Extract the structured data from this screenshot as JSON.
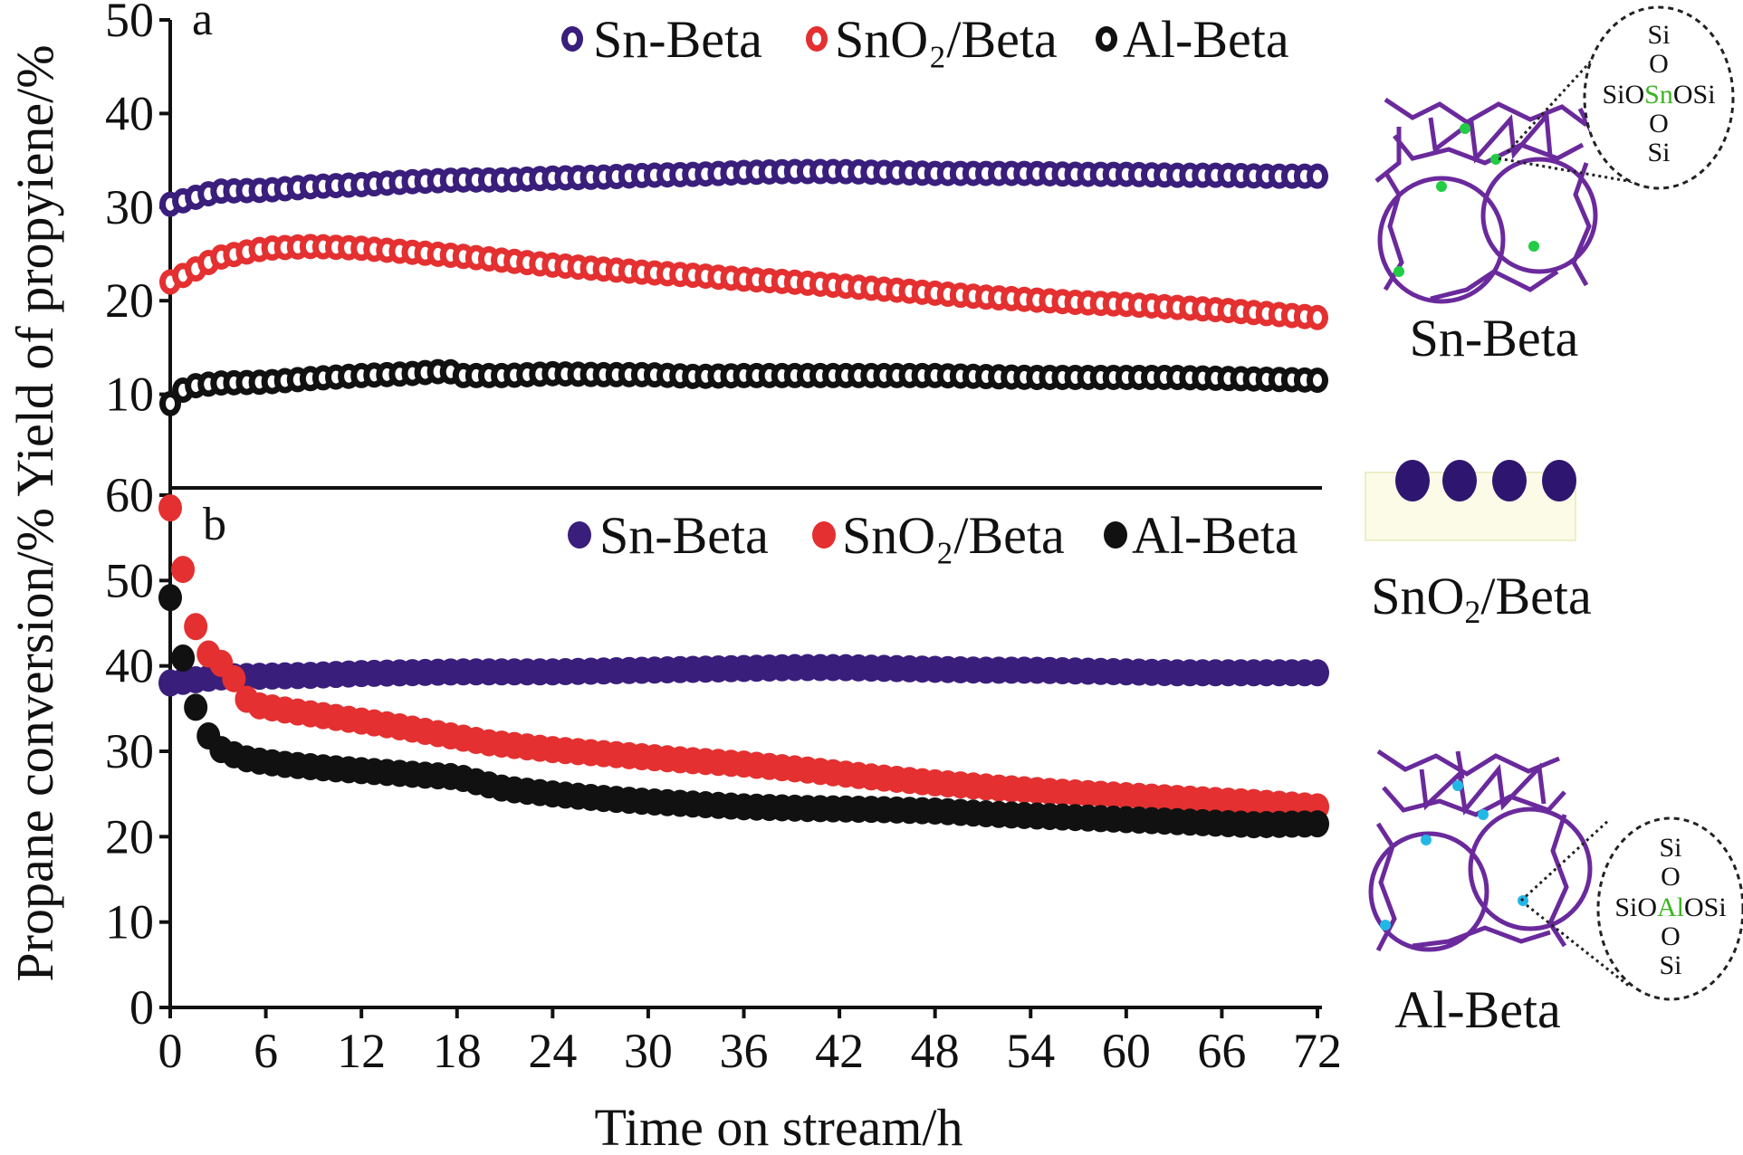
{
  "chart_data": [
    {
      "panel": "a",
      "type": "scatter",
      "ylim": [
        0,
        50
      ],
      "xlim": [
        0,
        72
      ],
      "yticks": [
        "10",
        "20",
        "30",
        "40",
        "50"
      ],
      "legend_position": "top-right",
      "series": [
        {
          "name": "Sn-Beta",
          "color": "#3a1e7c",
          "x": [
            0,
            3,
            6,
            9,
            12,
            15,
            18,
            21,
            24,
            27,
            30,
            33,
            36,
            39,
            42,
            45,
            48,
            51,
            54,
            57,
            60,
            63,
            66,
            69,
            72
          ],
          "y": [
            30.3,
            31.7,
            31.8,
            32.2,
            32.4,
            32.7,
            32.9,
            32.9,
            33.1,
            33.2,
            33.4,
            33.5,
            33.7,
            33.8,
            33.8,
            33.7,
            33.6,
            33.6,
            33.6,
            33.5,
            33.5,
            33.4,
            33.4,
            33.3,
            33.3
          ]
        },
        {
          "name": "SnO₂/Beta",
          "color": "#e43030",
          "x": [
            0,
            3,
            6,
            9,
            12,
            15,
            18,
            21,
            24,
            27,
            30,
            33,
            36,
            39,
            42,
            45,
            48,
            51,
            54,
            57,
            60,
            63,
            66,
            69,
            72
          ],
          "y": [
            22.0,
            24.6,
            25.6,
            25.8,
            25.6,
            25.2,
            24.8,
            24.3,
            23.8,
            23.4,
            23.0,
            22.7,
            22.3,
            22.0,
            21.6,
            21.2,
            20.8,
            20.4,
            20.1,
            19.8,
            19.6,
            19.3,
            19.0,
            18.6,
            18.2
          ]
        },
        {
          "name": "Al-Beta",
          "color": "#111111",
          "x": [
            0,
            1,
            3,
            6,
            9,
            12,
            15,
            17.5,
            18,
            21,
            24,
            27,
            30,
            33,
            36,
            39,
            42,
            45,
            48,
            51,
            54,
            57,
            60,
            63,
            66,
            69,
            72
          ],
          "y": [
            9.0,
            10.8,
            11.2,
            11.3,
            11.7,
            12.0,
            12.2,
            12.5,
            12.0,
            12.0,
            12.2,
            12.1,
            12.1,
            11.9,
            12.0,
            12.0,
            12.0,
            12.0,
            12.0,
            11.9,
            11.8,
            11.8,
            11.8,
            11.8,
            11.7,
            11.6,
            11.5
          ]
        }
      ]
    },
    {
      "panel": "b",
      "type": "scatter",
      "ylim": [
        0,
        60
      ],
      "xlim": [
        0,
        72
      ],
      "yticks": [
        "0",
        "10",
        "20",
        "30",
        "40",
        "50",
        "60"
      ],
      "xticks": [
        "0",
        "6",
        "12",
        "18",
        "24",
        "30",
        "36",
        "42",
        "48",
        "54",
        "60",
        "66",
        "72"
      ],
      "legend_position": "top-right",
      "series": [
        {
          "name": "Sn-Beta",
          "color": "#3a1e7c",
          "x": [
            0,
            3,
            6,
            9,
            12,
            15,
            18,
            21,
            24,
            27,
            30,
            33,
            36,
            39,
            42,
            45,
            48,
            51,
            54,
            57,
            60,
            63,
            66,
            69,
            72
          ],
          "y": [
            38.0,
            38.7,
            38.8,
            38.9,
            39.1,
            39.2,
            39.3,
            39.3,
            39.3,
            39.4,
            39.5,
            39.6,
            39.7,
            39.8,
            39.8,
            39.7,
            39.6,
            39.5,
            39.5,
            39.4,
            39.3,
            39.2,
            39.2,
            39.2,
            39.2
          ]
        },
        {
          "name": "SnO₂/Beta",
          "color": "#e43030",
          "x": [
            0,
            1.5,
            2.5,
            3.5,
            5,
            8,
            11,
            14,
            17,
            20,
            24,
            28,
            32,
            36,
            40,
            44,
            48,
            52,
            56,
            60,
            64,
            68,
            72
          ],
          "y": [
            58.5,
            45.0,
            41.0,
            40.0,
            35.5,
            34.6,
            33.8,
            33.0,
            32.0,
            31.0,
            30.2,
            29.6,
            29.0,
            28.5,
            27.8,
            27.0,
            26.3,
            25.7,
            25.2,
            24.8,
            24.4,
            24.0,
            23.5
          ]
        },
        {
          "name": "Al-Beta",
          "color": "#111111",
          "x": [
            0,
            1.3,
            2.3,
            3.3,
            5,
            7,
            10,
            13,
            16,
            18,
            21,
            24,
            27,
            30,
            33,
            36,
            40,
            44,
            48,
            52,
            56,
            60,
            64,
            68,
            72
          ],
          "y": [
            48.0,
            36.5,
            32.0,
            30.0,
            29.0,
            28.5,
            28.0,
            27.6,
            27.2,
            27.0,
            25.6,
            25.0,
            24.5,
            24.1,
            23.8,
            23.5,
            23.3,
            23.2,
            23.0,
            22.6,
            22.3,
            22.0,
            21.7,
            21.4,
            21.5
          ]
        }
      ]
    }
  ],
  "axes": {
    "y_title": "Propane conversion/% Yield of propyiene/%",
    "x_title": "Time on stream/h"
  },
  "panels": {
    "a_letter": "a",
    "b_letter": "b"
  },
  "structures": {
    "sn_beta": {
      "label": "Sn-Beta",
      "ring_lines": [
        "Si",
        "O",
        "O",
        "Si"
      ],
      "ring_center": [
        "SiO",
        "Sn",
        "OSi"
      ]
    },
    "sno2_beta": {
      "label_main": "SnO",
      "label_sub": "2",
      "label_tail": "/Beta"
    },
    "al_beta": {
      "label": "Al-Beta",
      "ring_lines": [
        "Si",
        "O",
        "O",
        "Si"
      ],
      "ring_center": [
        "SiO",
        "Al",
        "OSi"
      ]
    }
  }
}
